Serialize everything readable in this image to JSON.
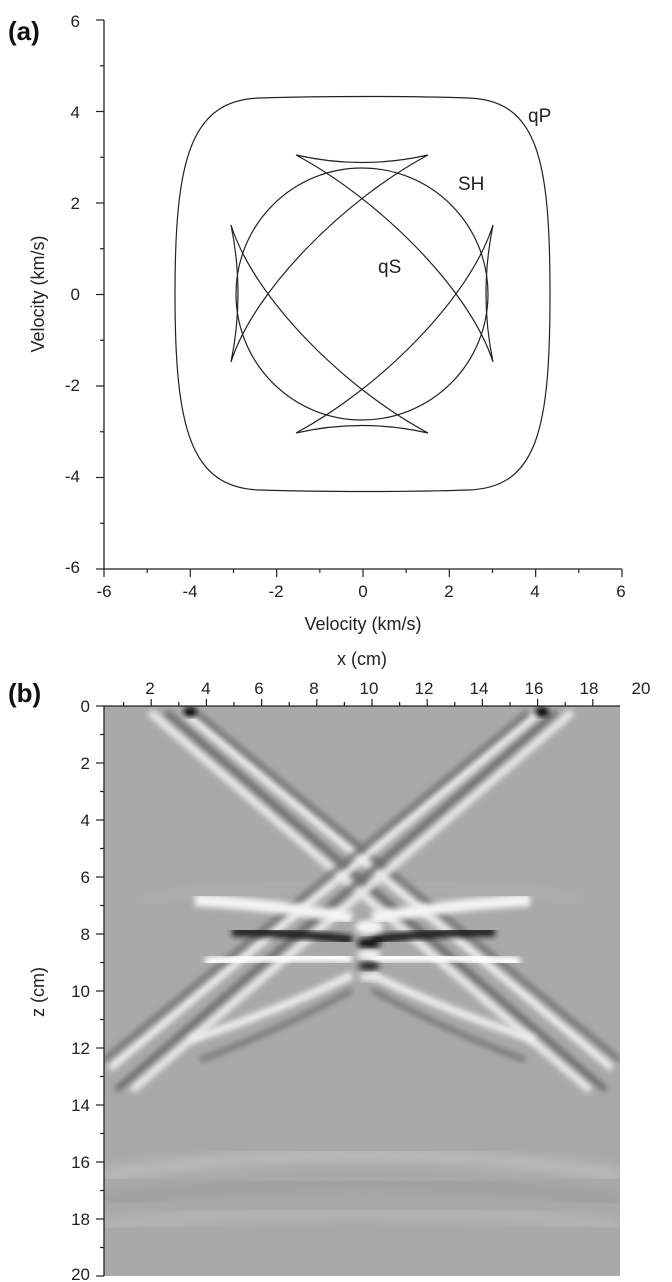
{
  "panel_a": {
    "label": "(a)",
    "chart_data": {
      "type": "line",
      "xlabel": "Velocity (km/s)",
      "ylabel": "Velocity (km/s)",
      "xlim": [
        -6,
        6
      ],
      "ylim": [
        -6,
        6
      ],
      "xticks": [
        "-6",
        "-4",
        "-2",
        "0",
        "2",
        "4",
        "6"
      ],
      "yticks": [
        "6",
        "4",
        "2",
        "0",
        "-2",
        "-4",
        "-6"
      ],
      "annotations": [
        "qP",
        "SH",
        "qS"
      ],
      "series": [
        {
          "name": "qP",
          "shape": "rounded-square",
          "half_width": 4.3
        },
        {
          "name": "SH",
          "shape": "circle",
          "radius": 2.75
        },
        {
          "name": "qS",
          "shape": "cusped-diamond",
          "cusp_extent": 3.05
        }
      ]
    }
  },
  "panel_b": {
    "label": "(b)",
    "chart_data": {
      "type": "heatmap",
      "xlabel": "x (cm)",
      "ylabel": "z (cm)",
      "xlim": [
        0,
        20
      ],
      "ylim": [
        0,
        20
      ],
      "xticks": [
        "2",
        "4",
        "6",
        "8",
        "10",
        "12",
        "14",
        "16",
        "18",
        "20"
      ],
      "yticks": [
        "0",
        "2",
        "4",
        "6",
        "8",
        "10",
        "12",
        "14",
        "16",
        "18",
        "20"
      ],
      "colormap": "grayscale",
      "background": "#a9a9a9"
    }
  }
}
